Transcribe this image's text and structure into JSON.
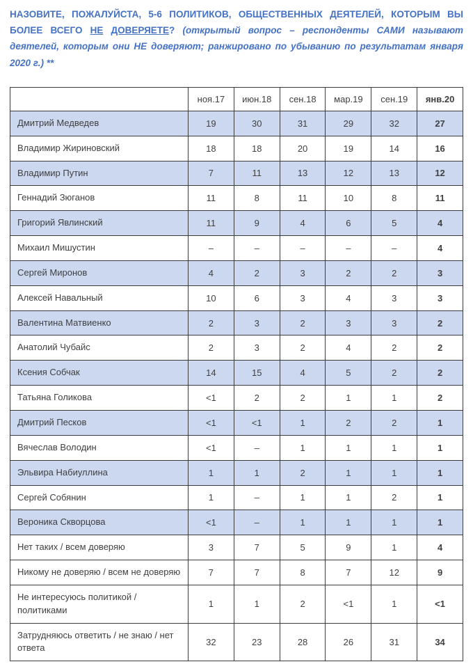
{
  "colors": {
    "heading-blue": "#4472C4",
    "row-shade": "#CCD7F0",
    "border-color": "#3B3B3B",
    "text-color": "#404040"
  },
  "heading": {
    "lead": "НАЗОВИТЕ, ПОЖАЛУЙСТА, 5-6 ПОЛИТИКОВ, ОБЩЕСТВЕННЫХ ДЕЯТЕЛЕЙ, КОТОРЫМ ВЫ БОЛЕЕ ВСЕГО",
    "underlined_word_1": "НЕ",
    "underlined_word_2": "ДОВЕРЯЕТЕ",
    "question_mark": "?",
    "note": "(открытый вопрос – респонденты САМИ называют деятелей, которым они НЕ доверяют; ранжировано по убыванию по результатам января 2020 г.) **"
  },
  "table": {
    "columns": [
      "ноя.17",
      "июн.18",
      "сен.18",
      "мар.19",
      "сен.19",
      "янв.20"
    ],
    "rows": [
      {
        "label": "Дмитрий Медведев",
        "values": [
          "19",
          "30",
          "31",
          "29",
          "32",
          "27"
        ],
        "shaded": true
      },
      {
        "label": "Владимир Жириновский",
        "values": [
          "18",
          "18",
          "20",
          "19",
          "14",
          "16"
        ],
        "shaded": false
      },
      {
        "label": "Владимир Путин",
        "values": [
          "7",
          "11",
          "13",
          "12",
          "13",
          "12"
        ],
        "shaded": true
      },
      {
        "label": "Геннадий Зюганов",
        "values": [
          "11",
          "8",
          "11",
          "10",
          "8",
          "11"
        ],
        "shaded": false
      },
      {
        "label": "Григорий Явлинский",
        "values": [
          "11",
          "9",
          "4",
          "6",
          "5",
          "4"
        ],
        "shaded": true
      },
      {
        "label": "Михаил Мишустин",
        "values": [
          "–",
          "–",
          "–",
          "–",
          "–",
          "4"
        ],
        "shaded": false
      },
      {
        "label": "Сергей Миронов",
        "values": [
          "4",
          "2",
          "3",
          "2",
          "2",
          "3"
        ],
        "shaded": true
      },
      {
        "label": "Алексей Навальный",
        "values": [
          "10",
          "6",
          "3",
          "4",
          "3",
          "3"
        ],
        "shaded": false
      },
      {
        "label": "Валентина Матвиенко",
        "values": [
          "2",
          "3",
          "2",
          "3",
          "3",
          "2"
        ],
        "shaded": true
      },
      {
        "label": "Анатолий Чубайс",
        "values": [
          "2",
          "3",
          "2",
          "4",
          "2",
          "2"
        ],
        "shaded": false
      },
      {
        "label": "Ксения Собчак",
        "values": [
          "14",
          "15",
          "4",
          "5",
          "2",
          "2"
        ],
        "shaded": true
      },
      {
        "label": "Татьяна Голикова",
        "values": [
          "<1",
          "2",
          "2",
          "1",
          "1",
          "2"
        ],
        "shaded": false
      },
      {
        "label": "Дмитрий Песков",
        "values": [
          "<1",
          "<1",
          "1",
          "2",
          "2",
          "1"
        ],
        "shaded": true
      },
      {
        "label": "Вячеслав Володин",
        "values": [
          "<1",
          "–",
          "1",
          "1",
          "1",
          "1"
        ],
        "shaded": false
      },
      {
        "label": "Эльвира Набиуллина",
        "values": [
          "1",
          "1",
          "2",
          "1",
          "1",
          "1"
        ],
        "shaded": true
      },
      {
        "label": "Сергей Собянин",
        "values": [
          "1",
          "–",
          "1",
          "1",
          "2",
          "1"
        ],
        "shaded": false
      },
      {
        "label": "Вероника Скворцова",
        "values": [
          "<1",
          "–",
          "1",
          "1",
          "1",
          "1"
        ],
        "shaded": true
      },
      {
        "label": "Нет таких / всем доверяю",
        "values": [
          "3",
          "7",
          "5",
          "9",
          "1",
          "4"
        ],
        "shaded": false
      },
      {
        "label": "Никому не доверяю / всем не доверяю",
        "values": [
          "7",
          "7",
          "8",
          "7",
          "12",
          "9"
        ],
        "shaded": false
      },
      {
        "label": "Не интересуюсь политикой / политиками",
        "values": [
          "1",
          "1",
          "2",
          "<1",
          "1",
          "<1"
        ],
        "shaded": false
      },
      {
        "label": "Затрудняюсь ответить / не знаю / нет ответа",
        "values": [
          "32",
          "23",
          "28",
          "26",
          "31",
          "34"
        ],
        "shaded": false
      }
    ]
  }
}
